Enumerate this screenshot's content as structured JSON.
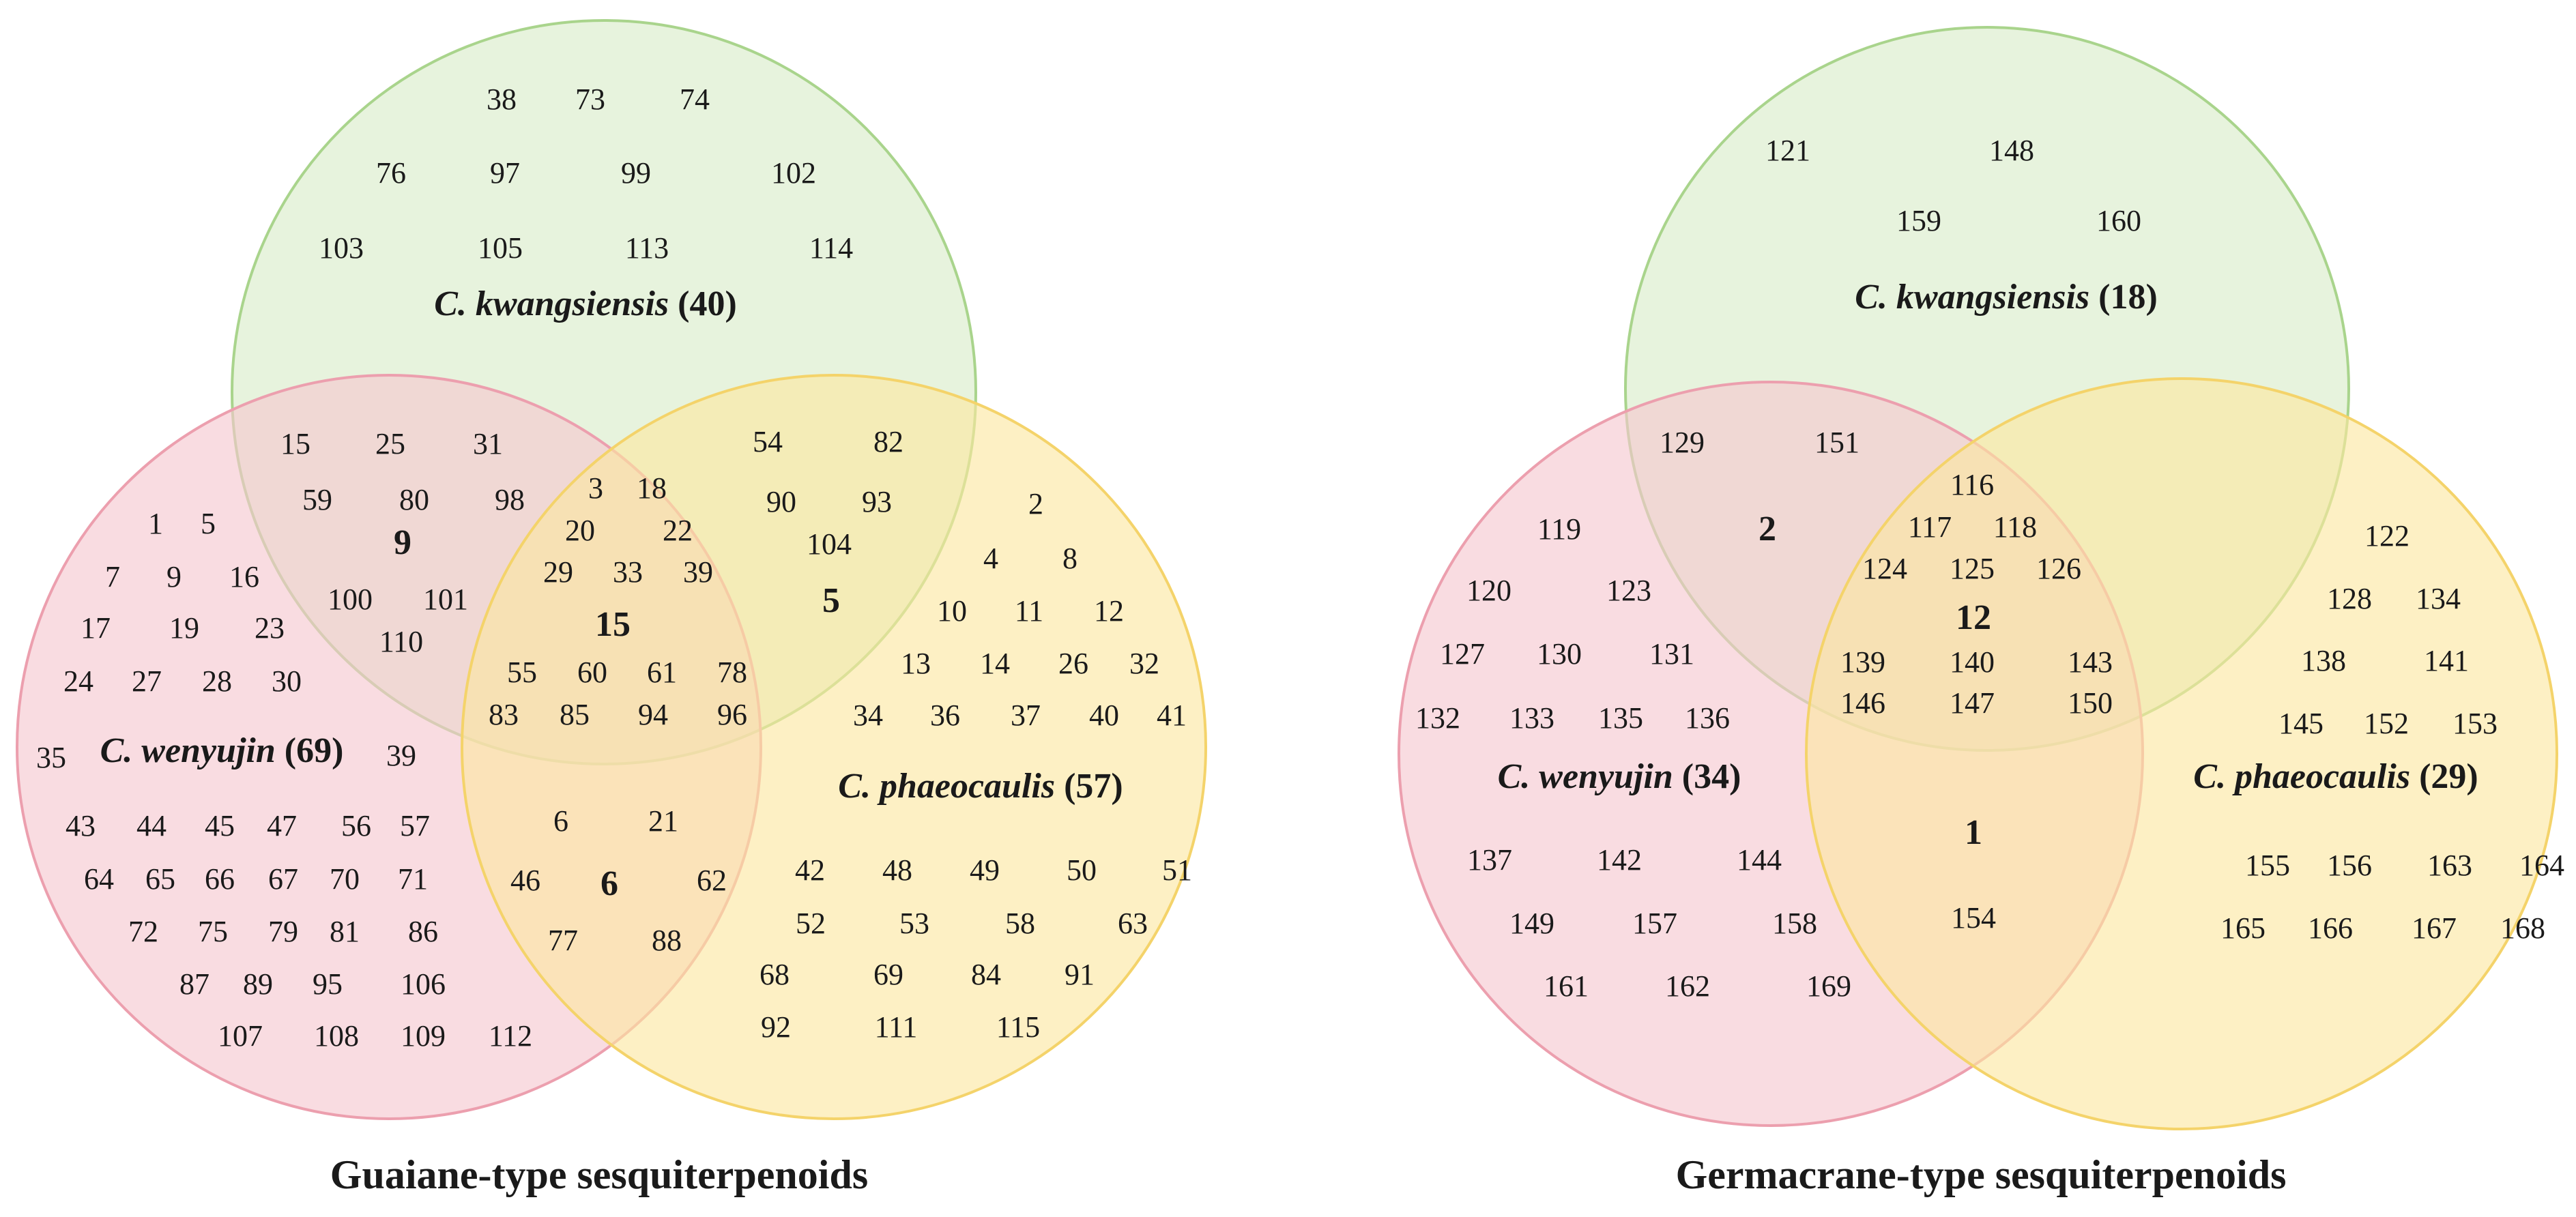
{
  "colors": {
    "green_fill": "#d9ecc8",
    "green_stroke": "#a9d48c",
    "pink_fill": "#f5c6cf",
    "pink_stroke": "#ec9fae",
    "yellow_fill": "#fbe7a0",
    "yellow_stroke": "#f4d36a",
    "text": "#1a1a1a"
  },
  "diagrams": [
    {
      "title": "Guaiane-type sesquiterpenoids",
      "sets": [
        {
          "key": "kwangsiensis",
          "name": "C. kwangsiensis",
          "count": "(40)",
          "color": "green"
        },
        {
          "key": "wenyujin",
          "name": "C. wenyujin",
          "count": "(69)",
          "color": "pink"
        },
        {
          "key": "phaeocaulis",
          "name": "C. phaeocaulis",
          "count": "(57)",
          "color": "yellow"
        }
      ],
      "regions": {
        "kwangsiensis_only": [
          "38",
          "73",
          "74",
          "76",
          "97",
          "99",
          "102",
          "103",
          "105",
          "113",
          "114"
        ],
        "wenyujin_only": [
          "1",
          "5",
          "7",
          "9",
          "16",
          "17",
          "19",
          "23",
          "24",
          "27",
          "28",
          "30",
          "35",
          "39",
          "43",
          "44",
          "45",
          "47",
          "56",
          "57",
          "64",
          "65",
          "66",
          "67",
          "70",
          "71",
          "72",
          "75",
          "79",
          "81",
          "86",
          "87",
          "89",
          "95",
          "106",
          "107",
          "108",
          "109",
          "112"
        ],
        "phaeocaulis_only": [
          "2",
          "4",
          "8",
          "10",
          "11",
          "12",
          "13",
          "14",
          "26",
          "32",
          "34",
          "36",
          "37",
          "40",
          "41",
          "42",
          "48",
          "49",
          "50",
          "51",
          "52",
          "53",
          "58",
          "63",
          "68",
          "69",
          "84",
          "91",
          "92",
          "111",
          "115"
        ],
        "kwangsiensis_wenyujin": {
          "members": [
            "15",
            "25",
            "31",
            "59",
            "80",
            "98",
            "100",
            "101",
            "110"
          ],
          "count": "9"
        },
        "kwangsiensis_phaeocaulis": {
          "members": [
            "54",
            "82",
            "90",
            "93",
            "104"
          ],
          "count": "5"
        },
        "wenyujin_phaeocaulis": {
          "members": [
            "6",
            "21",
            "46",
            "62",
            "77",
            "88"
          ],
          "count": "6"
        },
        "all_three": {
          "members": [
            "3",
            "18",
            "20",
            "22",
            "29",
            "33",
            "39",
            "55",
            "60",
            "61",
            "78",
            "83",
            "85",
            "94",
            "96"
          ],
          "count": "15"
        }
      }
    },
    {
      "title": "Germacrane-type sesquiterpenoids",
      "sets": [
        {
          "key": "kwangsiensis",
          "name": "C. kwangsiensis",
          "count": "(18)",
          "color": "green"
        },
        {
          "key": "wenyujin",
          "name": "C. wenyujin",
          "count": "(34)",
          "color": "pink"
        },
        {
          "key": "phaeocaulis",
          "name": "C. phaeocaulis",
          "count": "(29)",
          "color": "yellow"
        }
      ],
      "regions": {
        "kwangsiensis_only": [
          "121",
          "148",
          "159",
          "160"
        ],
        "wenyujin_only": [
          "119",
          "120",
          "123",
          "127",
          "130",
          "131",
          "132",
          "133",
          "135",
          "136",
          "137",
          "142",
          "144",
          "149",
          "157",
          "158",
          "161",
          "162",
          "169"
        ],
        "phaeocaulis_only": [
          "122",
          "128",
          "134",
          "138",
          "141",
          "145",
          "152",
          "153",
          "155",
          "156",
          "163",
          "164",
          "165",
          "166",
          "167",
          "168"
        ],
        "kwangsiensis_wenyujin": {
          "members": [
            "129",
            "151"
          ],
          "count": "2"
        },
        "kwangsiensis_phaeocaulis": {
          "members": [],
          "count": ""
        },
        "wenyujin_phaeocaulis": {
          "members": [
            "154"
          ],
          "count": "1"
        },
        "all_three": {
          "members": [
            "116",
            "117",
            "118",
            "124",
            "125",
            "126",
            "139",
            "140",
            "143",
            "146",
            "147",
            "150"
          ],
          "count": "12"
        }
      }
    }
  ]
}
